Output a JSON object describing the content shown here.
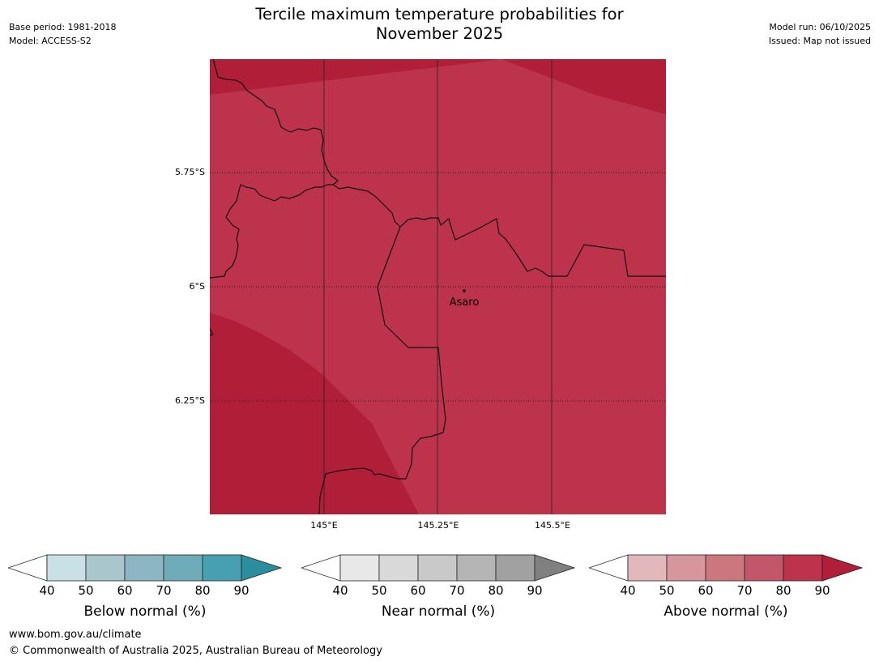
{
  "header": {
    "title_line1": "Tercile maximum temperature probabilities for",
    "title_line2": "November 2025",
    "base_period": "Base period: 1981-2018",
    "model": "Model: ACCESS-S2",
    "model_run": "Model run: 06/10/2025",
    "issued": "Issued: Map not issued"
  },
  "map": {
    "lat_labels": [
      "5.75°S",
      "6°S",
      "6.25°S"
    ],
    "lon_labels": [
      "145°E",
      "145.25°E",
      "145.5°E"
    ],
    "place_label": "Asaro",
    "colors": {
      "above_60_70": "#bd334b",
      "above_70_80": "#b11e38"
    }
  },
  "colorbars": [
    {
      "title": "Below normal (%)",
      "ticks": [
        "40",
        "50",
        "60",
        "70",
        "80",
        "90"
      ],
      "colors": [
        "#ffffff",
        "#c9e1e6",
        "#a8c6cc",
        "#8bb6c2",
        "#6fabb9",
        "#47a0af",
        "#2a8e9e"
      ]
    },
    {
      "title": "Near normal (%)",
      "ticks": [
        "40",
        "50",
        "60",
        "70",
        "80",
        "90"
      ],
      "colors": [
        "#ffffff",
        "#e8e8e8",
        "#d9d9d9",
        "#c9c9c9",
        "#b5b5b5",
        "#a1a1a1",
        "#808080"
      ]
    },
    {
      "title": "Above normal (%)",
      "ticks": [
        "40",
        "50",
        "60",
        "70",
        "80",
        "90"
      ],
      "colors": [
        "#ffffff",
        "#e2b8bd",
        "#d7959c",
        "#cc767d",
        "#c35669",
        "#bd334b",
        "#b11e38"
      ]
    }
  ],
  "footer": {
    "url": "www.bom.gov.au/climate",
    "copyright": "© Commonwealth of Australia 2025, Australian Bureau of Meteorology"
  }
}
